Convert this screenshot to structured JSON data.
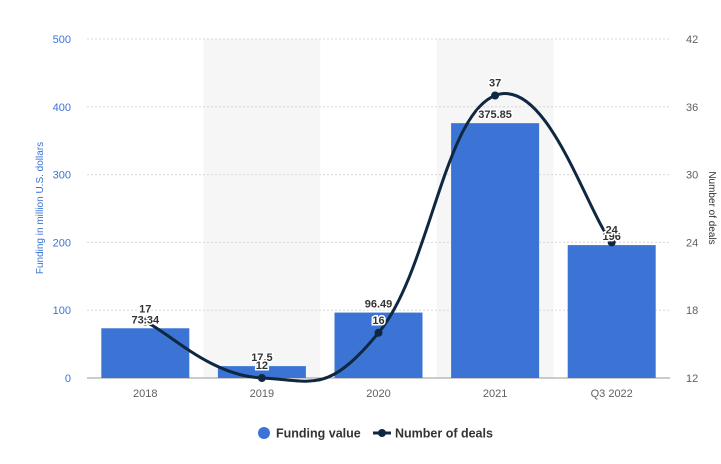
{
  "chart_data": {
    "type": "bar",
    "categories": [
      "2018",
      "2019",
      "2020",
      "2021",
      "Q3 2022"
    ],
    "series": [
      {
        "name": "Funding value",
        "type": "bar",
        "axis": "left",
        "values": [
          73.34,
          17.5,
          96.49,
          375.85,
          196
        ],
        "labels": [
          "73.34",
          "17.5",
          "96.49",
          "375.85",
          "196"
        ],
        "color": "#3b74d4"
      },
      {
        "name": "Number of deals",
        "type": "line",
        "axis": "right",
        "values": [
          17,
          12,
          16,
          37,
          24
        ],
        "labels": [
          "17",
          "12",
          "16",
          "37",
          "24"
        ],
        "color": "#0f2740"
      }
    ],
    "y_left": {
      "label": "Funding in million U.S. dollars",
      "ticks": [
        "0",
        "100",
        "200",
        "300",
        "400",
        "500"
      ],
      "range": [
        0,
        500
      ],
      "color": "#3b74d4"
    },
    "y_right": {
      "label": "Number of deals",
      "ticks": [
        "12",
        "18",
        "24",
        "30",
        "36",
        "42"
      ],
      "range": [
        12,
        42
      ],
      "color": "#333333"
    },
    "shaded_bands": [
      "2019",
      "2021"
    ],
    "grid": true,
    "legend": "bottom-center"
  }
}
